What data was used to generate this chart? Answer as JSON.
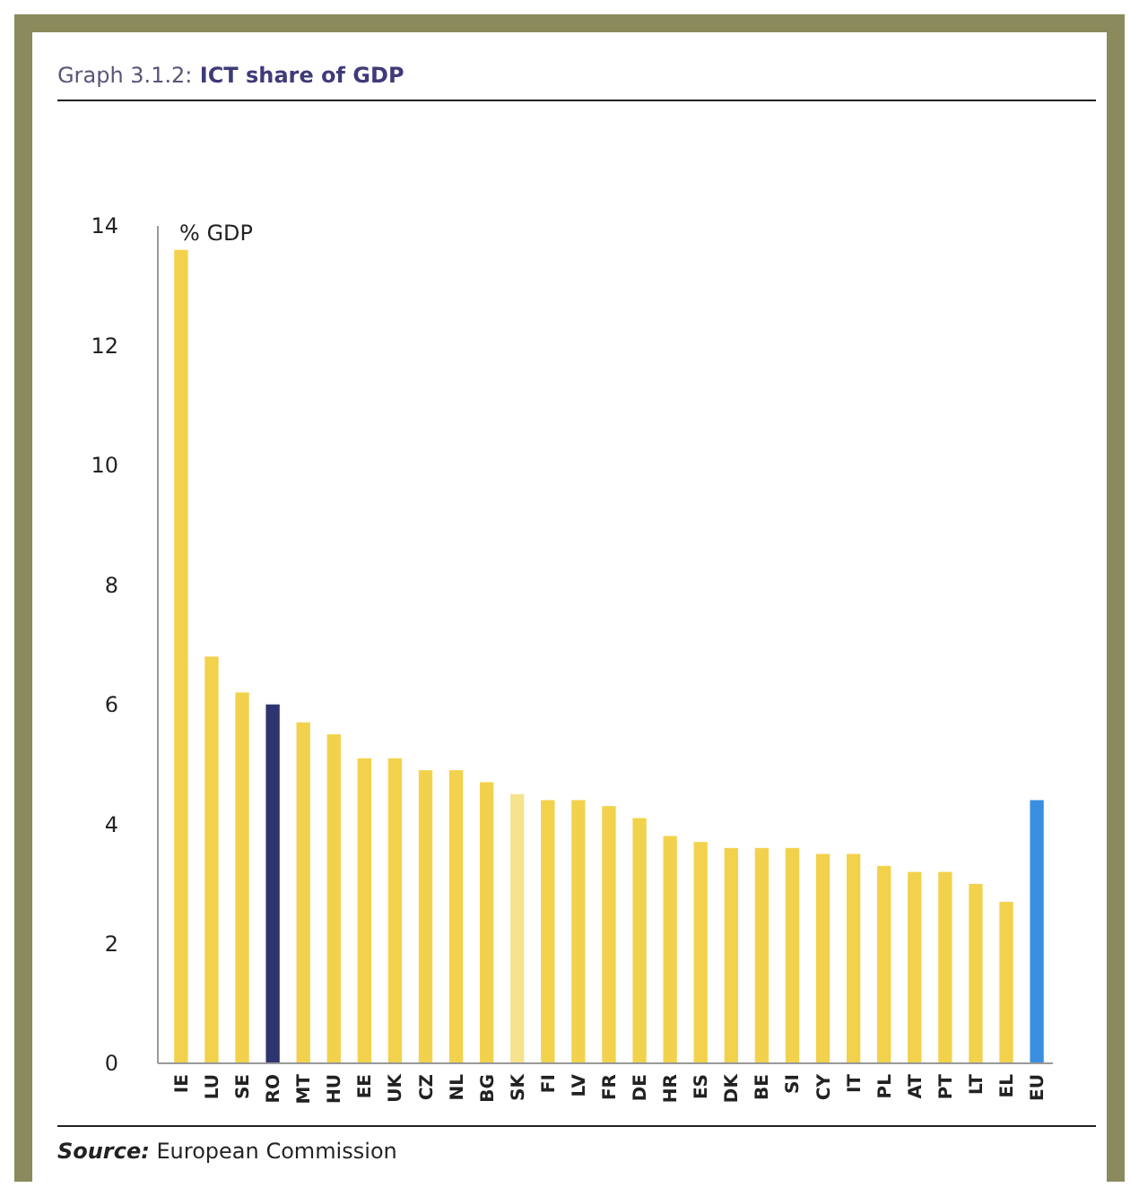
{
  "chart_data": {
    "type": "bar",
    "title": "Graph 3.1.2: ICT share of GDP",
    "ylabel": "% GDP",
    "categories": [
      "IE",
      "LU",
      "SE",
      "RO",
      "MT",
      "HU",
      "EE",
      "UK",
      "CZ",
      "NL",
      "BG",
      "SK",
      "FI",
      "LV",
      "FR",
      "DE",
      "HR",
      "ES",
      "DK",
      "BE",
      "SI",
      "CY",
      "IT",
      "PL",
      "AT",
      "PT",
      "LT",
      "EL",
      "EU"
    ],
    "values": [
      13.6,
      6.8,
      6.2,
      6.0,
      5.7,
      5.5,
      5.1,
      5.1,
      4.9,
      4.9,
      4.7,
      4.5,
      4.4,
      4.4,
      4.3,
      4.1,
      3.8,
      3.7,
      3.6,
      3.6,
      3.6,
      3.5,
      3.5,
      3.3,
      3.2,
      3.2,
      3.0,
      2.7,
      4.4
    ],
    "colors": [
      "#f2d24c",
      "#f2d24c",
      "#f2d24c",
      "#2e3470",
      "#f2d24c",
      "#f2d24c",
      "#f2d24c",
      "#f2d24c",
      "#f2d24c",
      "#f2d24c",
      "#f2d24c",
      "#f6e38e",
      "#f2d24c",
      "#f2d24c",
      "#f2d24c",
      "#f2d24c",
      "#f2d24c",
      "#f2d24c",
      "#f2d24c",
      "#f2d24c",
      "#f2d24c",
      "#f2d24c",
      "#f2d24c",
      "#f2d24c",
      "#f2d24c",
      "#f2d24c",
      "#f2d24c",
      "#f2d24c",
      "#3b8fe0"
    ],
    "ylim": [
      0,
      14
    ],
    "yticks": [
      0,
      2,
      4,
      6,
      8,
      10,
      12,
      14
    ],
    "annotations": [
      "Source: European Commission"
    ]
  }
}
